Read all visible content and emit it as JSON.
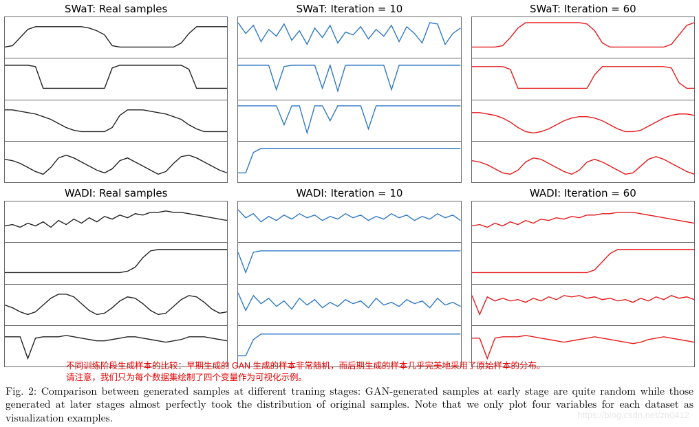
{
  "figure_caption_chinese_line1": "不同训练阶段生成样本的比较：早期生成的 GAN 生成的样本非常随机，而后期生成的样本几乎完美地采用了原始样本的分布。",
  "figure_caption_chinese_line2": "请注意，我们只为每个数据集绘制了四个变量作为可视化示例。",
  "figure_caption_english": "Fig. 2: Comparison between generated samples at different traning stages: GAN-generated samples at early stage are quite random while those generated at later stages almost perfectly took the distribution of original samples. Note that we only plot four variables for each dataset as visualization examples.",
  "watermark": "https://blog.csdn.net/zn0412",
  "layout": {
    "rows": 2,
    "cols": 3,
    "subplots_per_cell": 4
  },
  "global": {
    "background_color": "#ffffff",
    "border_color": "#666666",
    "title_fontsize": 15,
    "caption_red_color": "#e40000",
    "svg_viewbox_w": 100,
    "svg_viewbox_h": 30
  },
  "cells": [
    {
      "title": "SWaT: Real samples",
      "line_color": "#222222",
      "line_width": 1.4,
      "series": [
        [
          22,
          21,
          15,
          9,
          7,
          7,
          7,
          7,
          7,
          7,
          7,
          8,
          10,
          13,
          21,
          22,
          22,
          22,
          22,
          22,
          22,
          22,
          22,
          19,
          12,
          7,
          7,
          7,
          7,
          7
        ],
        [
          5,
          5,
          5,
          5,
          6,
          22,
          22,
          22,
          22,
          22,
          22,
          22,
          22,
          22,
          7,
          5,
          5,
          5,
          5,
          5,
          5,
          5,
          5,
          5,
          8,
          22,
          22,
          22,
          22,
          22
        ],
        [
          7,
          7,
          8,
          9,
          10,
          12,
          14,
          17,
          20,
          22,
          23,
          23,
          23,
          23,
          20,
          11,
          7,
          7,
          7,
          8,
          9,
          10,
          12,
          14,
          18,
          21,
          23,
          23,
          23,
          23
        ],
        [
          13,
          14,
          16,
          19,
          22,
          24,
          19,
          12,
          10,
          12,
          15,
          18,
          21,
          23,
          20,
          14,
          12,
          15,
          18,
          21,
          24,
          22,
          16,
          11,
          10,
          12,
          15,
          18,
          21,
          23
        ]
      ]
    },
    {
      "title": "SWaT: Iteration = 10",
      "line_color": "#2f78c4",
      "line_width": 1.4,
      "series": [
        [
          4,
          12,
          6,
          18,
          9,
          14,
          5,
          17,
          10,
          20,
          8,
          15,
          6,
          19,
          11,
          13,
          7,
          16,
          9,
          14,
          6,
          18,
          7,
          12,
          19,
          4,
          5,
          20,
          12,
          8
        ],
        [
          5,
          5,
          5,
          5,
          5,
          23,
          6,
          5,
          5,
          5,
          5,
          22,
          5,
          24,
          5,
          5,
          5,
          5,
          5,
          5,
          23,
          5,
          5,
          5,
          5,
          5,
          5,
          5,
          5,
          5
        ],
        [
          4,
          4,
          4,
          4,
          4,
          4,
          18,
          4,
          4,
          24,
          4,
          4,
          15,
          4,
          4,
          4,
          4,
          21,
          4,
          4,
          4,
          4,
          4,
          4,
          4,
          4,
          4,
          4,
          4,
          4
        ],
        [
          23,
          23,
          8,
          5,
          5,
          5,
          5,
          5,
          5,
          5,
          5,
          5,
          5,
          5,
          5,
          5,
          5,
          5,
          5,
          5,
          5,
          5,
          5,
          5,
          5,
          5,
          5,
          5,
          5,
          5
        ]
      ]
    },
    {
      "title": "SWaT: Iteration = 60",
      "line_color": "#e31a1c",
      "line_width": 1.4,
      "series": [
        [
          22,
          22,
          22,
          22,
          21,
          15,
          8,
          4,
          4,
          4,
          4,
          4,
          4,
          4,
          4,
          5,
          10,
          19,
          22,
          22,
          22,
          22,
          22,
          22,
          22,
          22,
          20,
          13,
          6,
          4
        ],
        [
          6,
          6,
          6,
          6,
          6,
          8,
          22,
          22,
          22,
          22,
          22,
          22,
          22,
          22,
          22,
          22,
          12,
          6,
          6,
          6,
          6,
          6,
          6,
          6,
          6,
          6,
          7,
          18,
          22,
          22
        ],
        [
          9,
          9,
          10,
          11,
          13,
          16,
          20,
          23,
          24,
          23,
          21,
          18,
          15,
          13,
          12,
          12,
          13,
          15,
          18,
          21,
          23,
          23,
          22,
          19,
          16,
          13,
          11,
          10,
          10,
          11
        ],
        [
          14,
          15,
          17,
          20,
          23,
          24,
          21,
          15,
          12,
          13,
          16,
          19,
          22,
          24,
          21,
          15,
          13,
          15,
          18,
          21,
          24,
          23,
          18,
          13,
          11,
          13,
          16,
          19,
          22,
          24
        ]
      ]
    },
    {
      "title": "WADI: Real samples",
      "line_color": "#222222",
      "line_width": 1.4,
      "series": [
        [
          18,
          17,
          19,
          16,
          18,
          15,
          19,
          14,
          17,
          13,
          16,
          12,
          15,
          11,
          13,
          10,
          12,
          9,
          10,
          8,
          8,
          7,
          8,
          8,
          9,
          10,
          11,
          12,
          13,
          14
        ],
        [
          22,
          22,
          22,
          22,
          22,
          22,
          22,
          22,
          22,
          22,
          22,
          22,
          22,
          22,
          22,
          22,
          21,
          18,
          11,
          6,
          5,
          5,
          5,
          5,
          5,
          5,
          5,
          5,
          5,
          5
        ],
        [
          15,
          17,
          20,
          22,
          20,
          15,
          10,
          7,
          7,
          9,
          14,
          19,
          22,
          21,
          17,
          12,
          9,
          10,
          14,
          19,
          22,
          21,
          16,
          11,
          8,
          9,
          13,
          18,
          21,
          20
        ],
        [
          8,
          8,
          8,
          24,
          9,
          8,
          8,
          8,
          7,
          8,
          9,
          10,
          11,
          11,
          10,
          9,
          8,
          8,
          9,
          10,
          11,
          12,
          11,
          10,
          8,
          8,
          8,
          9,
          10,
          11
        ]
      ]
    },
    {
      "title": "WADI: Iteration = 10",
      "line_color": "#2f78c4",
      "line_width": 1.4,
      "series": [
        [
          6,
          12,
          9,
          15,
          11,
          14,
          10,
          13,
          9,
          12,
          10,
          14,
          11,
          13,
          9,
          12,
          10,
          14,
          11,
          13,
          9,
          12,
          10,
          14,
          11,
          13,
          9,
          12,
          10,
          14
        ],
        [
          7,
          22,
          7,
          6,
          6,
          6,
          6,
          6,
          6,
          6,
          6,
          6,
          6,
          6,
          6,
          6,
          6,
          6,
          6,
          6,
          6,
          6,
          6,
          6,
          6,
          6,
          6,
          6,
          6,
          6
        ],
        [
          6,
          19,
          8,
          14,
          10,
          16,
          12,
          18,
          10,
          15,
          11,
          17,
          13,
          16,
          11,
          14,
          12,
          17,
          10,
          15,
          13,
          16,
          11,
          14,
          12,
          17,
          10,
          15,
          13,
          16
        ],
        [
          22,
          22,
          10,
          6,
          6,
          6,
          6,
          6,
          6,
          6,
          6,
          6,
          6,
          6,
          6,
          6,
          6,
          6,
          6,
          6,
          6,
          6,
          6,
          6,
          6,
          6,
          6,
          6,
          6,
          6
        ]
      ]
    },
    {
      "title": "WADI: Iteration = 60",
      "line_color": "#e31a1c",
      "line_width": 1.4,
      "series": [
        [
          18,
          17,
          19,
          16,
          18,
          15,
          17,
          14,
          16,
          13,
          14,
          12,
          13,
          11,
          12,
          10,
          10,
          9,
          9,
          8,
          8,
          8,
          9,
          10,
          11,
          12,
          13,
          14,
          15,
          16
        ],
        [
          22,
          22,
          22,
          22,
          22,
          22,
          22,
          22,
          22,
          22,
          22,
          22,
          22,
          22,
          22,
          22,
          20,
          14,
          8,
          5,
          5,
          5,
          5,
          5,
          5,
          5,
          5,
          5,
          5,
          5
        ],
        [
          8,
          22,
          9,
          12,
          10,
          12,
          11,
          13,
          10,
          12,
          9,
          11,
          8,
          9,
          8,
          10,
          9,
          11,
          10,
          12,
          11,
          13,
          10,
          12,
          9,
          11,
          8,
          10,
          9,
          11
        ],
        [
          9,
          9,
          24,
          9,
          8,
          8,
          8,
          7,
          8,
          9,
          10,
          11,
          12,
          11,
          10,
          9,
          8,
          9,
          10,
          11,
          12,
          13,
          12,
          10,
          9,
          8,
          9,
          10,
          11,
          12
        ]
      ]
    }
  ]
}
